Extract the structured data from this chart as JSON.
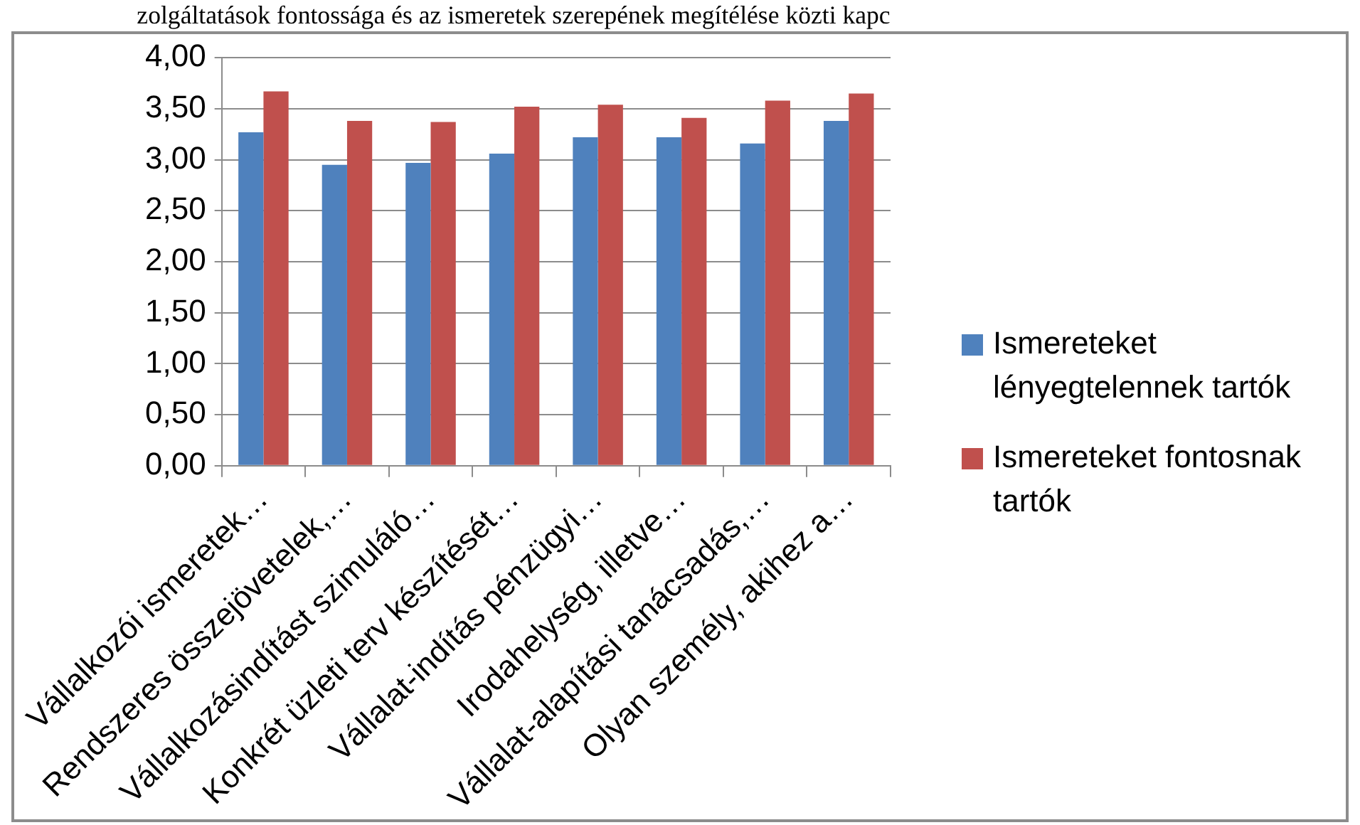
{
  "chart_data": {
    "type": "bar",
    "title": "zolgáltatások fontossága és az ismeretek szerepének megítélése közti kapc",
    "categories": [
      "Vállalkozói ismeretek…",
      "Rendszeres összejövetelek,…",
      "Vállalkozásindítást szimuláló…",
      "Konkrét üzleti terv készítését…",
      "Vállalat-indítás pénzügyi…",
      "Irodahelység, illetve…",
      "Vállalat-alapítási tanácsadás,…",
      "Olyan személy, akihez a…"
    ],
    "series": [
      {
        "name": "Ismereteket lényegtelennek tartók",
        "color": "#4f81bd",
        "values": [
          3.27,
          2.95,
          2.97,
          3.06,
          3.22,
          3.22,
          3.16,
          3.38
        ]
      },
      {
        "name": "Ismereteket fontosnak tartók",
        "color": "#c0504d",
        "values": [
          3.67,
          3.38,
          3.37,
          3.52,
          3.54,
          3.41,
          3.58,
          3.65
        ]
      }
    ],
    "ylim": [
      0,
      4
    ],
    "yticks": [
      {
        "value": 0,
        "label": "0,00"
      },
      {
        "value": 0.5,
        "label": "0,50"
      },
      {
        "value": 1,
        "label": "1,00"
      },
      {
        "value": 1.5,
        "label": "1,50"
      },
      {
        "value": 2,
        "label": "2,00"
      },
      {
        "value": 2.5,
        "label": "2,50"
      },
      {
        "value": 3,
        "label": "3,00"
      },
      {
        "value": 3.5,
        "label": "3,50"
      },
      {
        "value": 4,
        "label": "4,00"
      }
    ],
    "grid": "y",
    "legend": "right"
  }
}
